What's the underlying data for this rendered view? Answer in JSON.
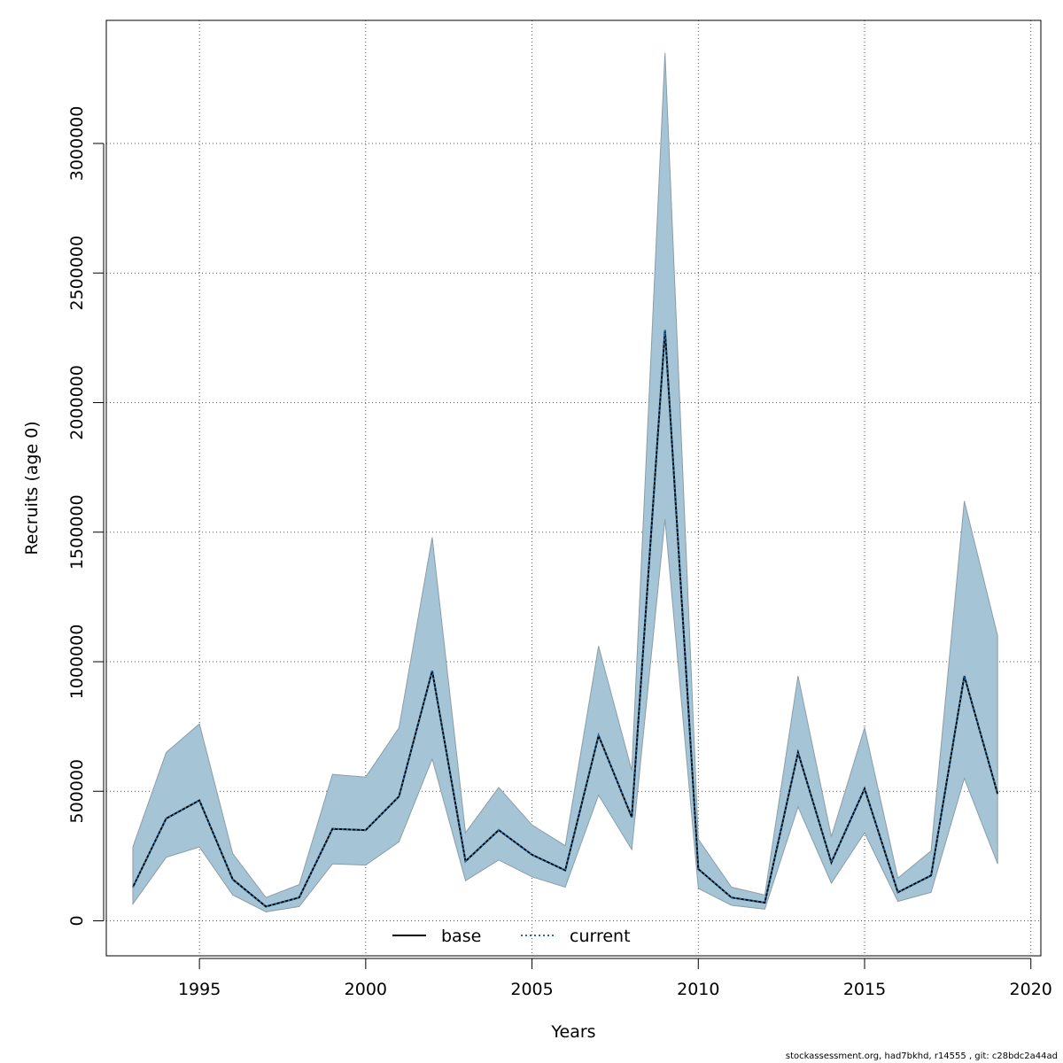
{
  "chart_data": {
    "type": "line",
    "xlabel": "Years",
    "ylabel": "Recruits (age 0)",
    "xlim": [
      1992.2,
      2020.3
    ],
    "ylim": [
      -135000,
      3475000
    ],
    "xticks": [
      1995,
      2000,
      2005,
      2010,
      2015,
      2020
    ],
    "yticks": [
      0,
      500000,
      1000000,
      1500000,
      2000000,
      2500000,
      3000000
    ],
    "grid": true,
    "colors": {
      "band": "#a5c4d6",
      "band_edge": "#8a9ea8",
      "base": "#000000",
      "current": "#1f6fa8",
      "grid": "#555555"
    },
    "x": [
      1993,
      1994,
      1995,
      1996,
      1997,
      1998,
      1999,
      2000,
      2001,
      2002,
      2003,
      2004,
      2005,
      2006,
      2007,
      2008,
      2009,
      2010,
      2011,
      2012,
      2013,
      2014,
      2015,
      2016,
      2017,
      2018,
      2019
    ],
    "series": [
      {
        "name": "base",
        "style": "solid",
        "values": [
          130000,
          395000,
          465000,
          160000,
          55000,
          90000,
          355000,
          350000,
          480000,
          965000,
          230000,
          350000,
          255000,
          195000,
          715000,
          400000,
          2280000,
          200000,
          90000,
          70000,
          650000,
          225000,
          510000,
          110000,
          175000,
          945000,
          490000
        ]
      },
      {
        "name": "current",
        "style": "dotted",
        "values": [
          130000,
          395000,
          465000,
          160000,
          55000,
          90000,
          355000,
          350000,
          480000,
          965000,
          230000,
          350000,
          255000,
          195000,
          715000,
          400000,
          2280000,
          200000,
          90000,
          70000,
          650000,
          225000,
          510000,
          110000,
          175000,
          945000,
          490000
        ]
      }
    ],
    "band": {
      "upper": [
        285000,
        650000,
        760000,
        260000,
        90000,
        140000,
        565000,
        555000,
        745000,
        1480000,
        340000,
        515000,
        370000,
        290000,
        1060000,
        580000,
        3350000,
        315000,
        130000,
        100000,
        945000,
        325000,
        745000,
        165000,
        270000,
        1620000,
        1100000
      ],
      "lower": [
        65000,
        245000,
        285000,
        100000,
        35000,
        55000,
        220000,
        215000,
        305000,
        625000,
        155000,
        235000,
        170000,
        130000,
        485000,
        275000,
        1550000,
        125000,
        60000,
        45000,
        440000,
        145000,
        340000,
        75000,
        110000,
        550000,
        220000
      ]
    },
    "legend": {
      "entries": [
        "base",
        "current"
      ],
      "placement": "bottom-center"
    }
  },
  "footer": "stockassessment.org, had7bkhd, r14555 , git: c28bdc2a44ad"
}
